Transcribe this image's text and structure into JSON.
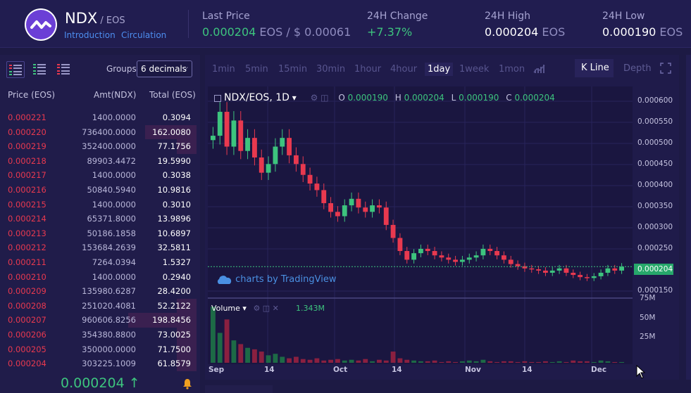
{
  "header": {
    "pair": "NDX",
    "quote": " / EOS",
    "links": [
      "Introduction",
      "Circulation"
    ],
    "stats": [
      {
        "label": "Last Price",
        "value": "0.000204",
        "unit": " EOS / $ 0.00061"
      },
      {
        "label": "24H Change",
        "value": "+7.37%",
        "unit": ""
      },
      {
        "label": "24H High",
        "value": "0.000204",
        "unit": " EOS"
      },
      {
        "label": "24H Low",
        "value": "0.000190",
        "unit": " EOS"
      }
    ]
  },
  "orderbook": {
    "groups_label": "Groups",
    "groups_value": "6 decimals",
    "headers": [
      "Price (EOS)",
      "Amt(NDX)",
      "Total (EOS)"
    ],
    "rows": [
      {
        "price": "0.000221",
        "amt": "1400.0000",
        "total": "0.3094",
        "depth": 0.0
      },
      {
        "price": "0.000220",
        "amt": "736400.0000",
        "total": "162.0080",
        "depth": 0.73
      },
      {
        "price": "0.000219",
        "amt": "352400.0000",
        "total": "77.1756",
        "depth": 0.28
      },
      {
        "price": "0.000218",
        "amt": "89903.4472",
        "total": "19.5990",
        "depth": 0.0
      },
      {
        "price": "0.000217",
        "amt": "1400.0000",
        "total": "0.3038",
        "depth": 0.0
      },
      {
        "price": "0.000216",
        "amt": "50840.5940",
        "total": "10.9816",
        "depth": 0.0
      },
      {
        "price": "0.000215",
        "amt": "1400.0000",
        "total": "0.3010",
        "depth": 0.0
      },
      {
        "price": "0.000214",
        "amt": "65371.8000",
        "total": "13.9896",
        "depth": 0.0
      },
      {
        "price": "0.000213",
        "amt": "50186.1858",
        "total": "10.6897",
        "depth": 0.0
      },
      {
        "price": "0.000212",
        "amt": "153684.2639",
        "total": "32.5811",
        "depth": 0.0
      },
      {
        "price": "0.000211",
        "amt": "7264.0394",
        "total": "1.5327",
        "depth": 0.0
      },
      {
        "price": "0.000210",
        "amt": "1400.0000",
        "total": "0.2940",
        "depth": 0.0
      },
      {
        "price": "0.000209",
        "amt": "135980.6287",
        "total": "28.4200",
        "depth": 0.0
      },
      {
        "price": "0.000208",
        "amt": "251020.4081",
        "total": "52.2122",
        "depth": 0.28
      },
      {
        "price": "0.000207",
        "amt": "960606.8256",
        "total": "198.8456",
        "depth": 0.97
      },
      {
        "price": "0.000206",
        "amt": "354380.8800",
        "total": "73.0025",
        "depth": 0.28
      },
      {
        "price": "0.000205",
        "amt": "350000.0000",
        "total": "71.7500",
        "depth": 0.28
      },
      {
        "price": "0.000204",
        "amt": "303225.1009",
        "total": "61.8579",
        "depth": 0.28
      }
    ],
    "last_price": "0.000204 ↑"
  },
  "chart": {
    "timeframes": [
      "1min",
      "5min",
      "15min",
      "30min",
      "1hour",
      "4hour",
      "1day",
      "1week",
      "1mon"
    ],
    "active_tf": "1day",
    "kline": "K Line",
    "depth": "Depth",
    "symbol": "NDX/EOS, 1D",
    "ohlc": [
      [
        "O",
        "0.000190"
      ],
      [
        "H",
        "0.000204"
      ],
      [
        "L",
        "0.000190"
      ],
      [
        "C",
        "0.000204"
      ]
    ],
    "tv": "charts by TradingView",
    "volume_label": "Volume",
    "volume_value": "1.343M",
    "current_price": "0.000204",
    "colors": {
      "up": "#3dc47e",
      "down": "#e8394f"
    }
  },
  "chart_data": {
    "type": "candlestick",
    "price_ticks": [
      "0.000600",
      "0.000550",
      "0.000500",
      "0.000450",
      "0.000400",
      "0.000350",
      "0.000300",
      "0.000250",
      "0.000150"
    ],
    "volume_ticks": [
      "75M",
      "50M",
      "25M"
    ],
    "x_ticks": [
      "Sep",
      "14",
      "Oct",
      "14",
      "Nov",
      "14",
      "Dec"
    ],
    "ylim": [
      0.000135,
      0.000615
    ],
    "closes": [
      0.000505,
      0.00056,
      0.00048,
      0.00054,
      0.00047,
      0.0005,
      0.000455,
      0.00042,
      0.00044,
      0.00048,
      0.0005,
      0.00046,
      0.00044,
      0.000415,
      0.000395,
      0.00038,
      0.00035,
      0.00033,
      0.00032,
      0.000345,
      0.00036,
      0.00034,
      0.00033,
      0.000345,
      0.00034,
      0.0003,
      0.00027,
      0.00024,
      0.00022,
      0.000235,
      0.000245,
      0.00024,
      0.00023,
      0.000225,
      0.00022,
      0.000215,
      0.00022,
      0.000225,
      0.00023,
      0.000245,
      0.00024,
      0.00023,
      0.00022,
      0.00021,
      0.000205,
      0.0002,
      0.000198,
      0.000195,
      0.00019,
      0.000195,
      0.0002,
      0.00019,
      0.000185,
      0.00018,
      0.000178,
      0.000182,
      0.00019,
      0.0002,
      0.000195,
      0.000204
    ],
    "volumes": [
      75,
      40,
      58,
      30,
      25,
      20,
      18,
      15,
      10,
      12,
      8,
      6,
      8,
      5,
      4,
      6,
      3,
      4,
      5,
      3,
      4,
      3,
      5,
      2,
      4,
      3,
      15,
      6,
      4,
      3,
      2,
      2,
      3,
      1,
      2,
      1,
      2,
      3,
      2,
      4,
      2,
      1,
      2,
      2,
      1,
      2,
      1,
      1,
      2,
      1,
      2,
      1,
      3,
      2,
      2,
      1,
      3,
      2,
      1,
      1
    ]
  }
}
